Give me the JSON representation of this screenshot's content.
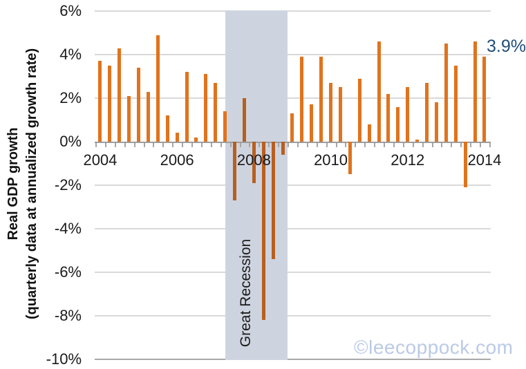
{
  "chart_data": {
    "type": "bar",
    "title_line1": "Real GDP growth",
    "title_line2": "(quarterly data at annualized growth rate)",
    "values": [
      3.7,
      3.5,
      4.3,
      2.1,
      3.4,
      2.3,
      4.9,
      1.2,
      0.4,
      3.2,
      0.2,
      3.1,
      2.7,
      1.4,
      -2.7,
      2.0,
      -1.9,
      -8.2,
      -5.4,
      -0.6,
      1.3,
      3.9,
      1.7,
      3.9,
      2.7,
      2.5,
      -1.5,
      2.9,
      0.8,
      4.6,
      2.2,
      1.6,
      2.5,
      0.1,
      2.7,
      1.8,
      4.5,
      3.5,
      -2.1,
      4.6,
      3.9
    ],
    "bars_per_year": 4,
    "y_tick_labels": [
      "6%",
      "4%",
      "2%",
      "0%",
      "-2%",
      "-4%",
      "-6%",
      "-8%",
      "-10%"
    ],
    "y_tick_values": [
      6,
      4,
      2,
      0,
      -2,
      -4,
      -6,
      -8,
      -10
    ],
    "ylim": [
      -10,
      6
    ],
    "x_year_labels": [
      "2004",
      "2006",
      "2008",
      "2010",
      "2012",
      "2014"
    ],
    "x_year_label_bar_indices": [
      0,
      8,
      16,
      24,
      32,
      40
    ],
    "grid": true,
    "annotation_last_value": "3.9%",
    "recession": {
      "label": "Great Recession",
      "muted_bar_start_index": 14,
      "muted_bar_end_index": 19
    },
    "watermark": "©leecoppock.com",
    "colors": {
      "bar": "#E0731D",
      "bar_in_recession": "#B85F20",
      "recession_band": "#CED4DF",
      "gridline": "#D9D9D9",
      "bottom_gridline": "#A8A8A8",
      "axis_line": "#9C9C9C",
      "tick": "#A6A6A6",
      "annotation": "#1F4E79",
      "watermark": "#BACAE6",
      "text": "#1a1a1a"
    }
  }
}
